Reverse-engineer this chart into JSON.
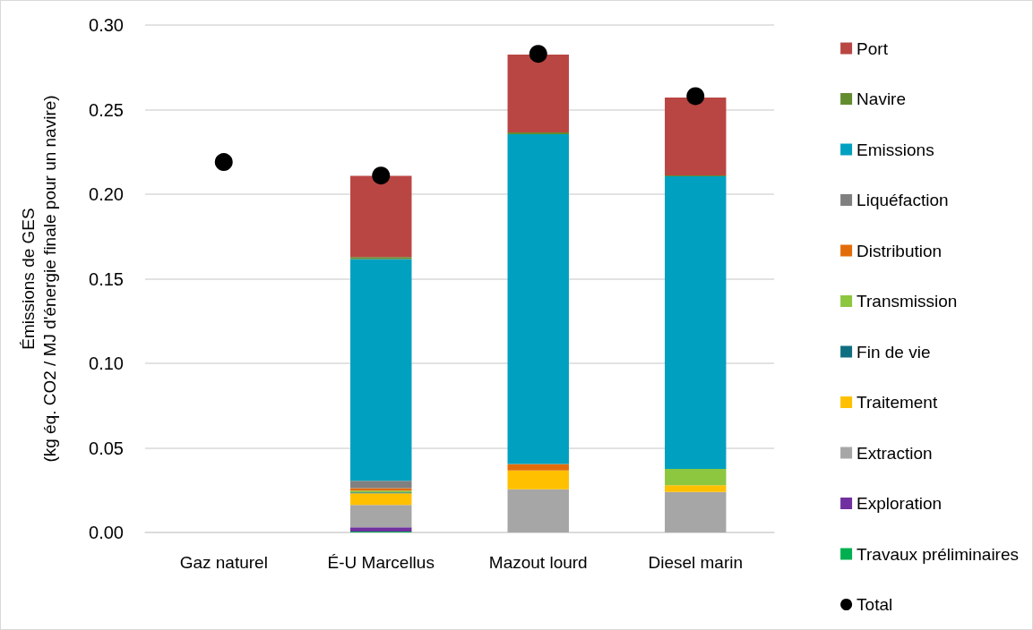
{
  "chart_data": {
    "type": "bar",
    "stacked": true,
    "ylabel": "Émissions de GES\n(kg éq. CO2 / MJ d'énergie finale pour un navire)",
    "categories": [
      "Gaz naturel",
      "É-U Marcellus",
      "Mazout lourd",
      "Diesel marin"
    ],
    "ylim": [
      0,
      0.3
    ],
    "yticks": [
      {
        "value": 0,
        "label": "0.00"
      },
      0.05,
      {
        "value": 0.1,
        "label": "0.10"
      },
      0.15,
      {
        "value": 0.2,
        "label": "0.20"
      },
      0.25,
      {
        "value": 0.3,
        "label": "0.30"
      }
    ],
    "grid": "y",
    "legend": "right",
    "series": [
      {
        "name": "Travaux préliminaires",
        "color": "#00b050",
        "values": [
          null,
          0.0005,
          null,
          null
        ]
      },
      {
        "name": "Exploration",
        "color": "#7030a0",
        "values": [
          null,
          0.0025,
          null,
          null
        ]
      },
      {
        "name": "Extraction",
        "color": "#a6a6a6",
        "values": [
          null,
          0.0133,
          0.0255,
          0.0239
        ]
      },
      {
        "name": "Traitement",
        "color": "#ffc000",
        "values": [
          null,
          0.0069,
          0.0111,
          0.004
        ]
      },
      {
        "name": "Fin de vie",
        "color": "#0f6f80",
        "values": [
          null,
          0.0005,
          null,
          null
        ]
      },
      {
        "name": "Transmission",
        "color": "#8dc63f",
        "values": [
          null,
          0.001,
          null,
          0.0097
        ]
      },
      {
        "name": "Distribution",
        "color": "#e36c0a",
        "values": [
          null,
          0.0015,
          0.0039,
          null
        ]
      },
      {
        "name": "Liquéfaction",
        "color": "#808080",
        "values": [
          null,
          0.0044,
          null,
          null
        ]
      },
      {
        "name": "Emissions",
        "color": "#00a0c0",
        "values": [
          null,
          0.131,
          0.195,
          0.173
        ]
      },
      {
        "name": "Navire",
        "color": "#638c2f",
        "values": [
          null,
          0.0012,
          0.001,
          0.0005
        ]
      },
      {
        "name": "Port",
        "color": "#b94643",
        "values": [
          null,
          0.048,
          0.046,
          0.046
        ]
      },
      {
        "name": "Total",
        "type": "scatter",
        "marker": "circle",
        "color": "#000000",
        "x": [
          "Gaz naturel",
          "É-U Marcellus",
          "Mazout lourd",
          "Diesel marin"
        ],
        "values": [
          0.219,
          0.211,
          0.283,
          0.258
        ]
      }
    ]
  }
}
